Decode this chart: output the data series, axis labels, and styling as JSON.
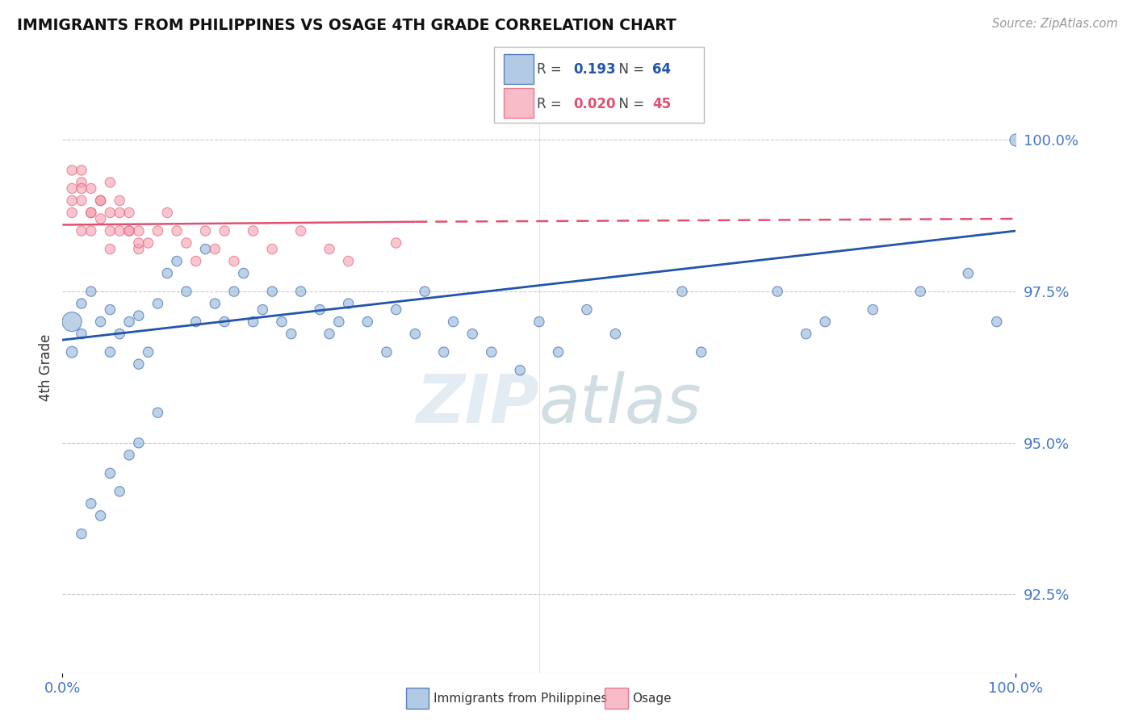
{
  "title": "IMMIGRANTS FROM PHILIPPINES VS OSAGE 4TH GRADE CORRELATION CHART",
  "source": "Source: ZipAtlas.com",
  "ylabel": "4th Grade",
  "xlim": [
    0,
    100
  ],
  "ylim": [
    91.2,
    101.3
  ],
  "yticks": [
    92.5,
    95.0,
    97.5,
    100.0
  ],
  "ytick_labels": [
    "92.5%",
    "95.0%",
    "97.5%",
    "100.0%"
  ],
  "blue_R": "0.193",
  "blue_N": "64",
  "pink_R": "0.020",
  "pink_N": "45",
  "legend_label_blue": "Immigrants from Philippines",
  "legend_label_pink": "Osage",
  "blue_color": "#92B4D8",
  "pink_color": "#F5A0B0",
  "blue_line_color": "#2255AA",
  "pink_line_color": "#E05070",
  "blue_scatter_x": [
    1,
    1,
    2,
    2,
    3,
    4,
    5,
    5,
    6,
    7,
    8,
    8,
    9,
    10,
    11,
    12,
    13,
    14,
    15,
    16,
    17,
    18,
    19,
    20,
    21,
    22,
    23,
    24,
    25,
    27,
    28,
    29,
    30,
    32,
    34,
    35,
    37,
    38,
    40,
    41,
    43,
    45,
    48,
    50,
    52,
    55,
    58,
    65,
    67,
    75,
    78,
    80,
    85,
    90,
    95,
    98,
    2,
    3,
    4,
    5,
    6,
    7,
    8,
    10
  ],
  "blue_scatter_y": [
    97.0,
    96.5,
    97.3,
    96.8,
    97.5,
    97.0,
    96.5,
    97.2,
    96.8,
    97.0,
    96.3,
    97.1,
    96.5,
    97.3,
    97.8,
    98.0,
    97.5,
    97.0,
    98.2,
    97.3,
    97.0,
    97.5,
    97.8,
    97.0,
    97.2,
    97.5,
    97.0,
    96.8,
    97.5,
    97.2,
    96.8,
    97.0,
    97.3,
    97.0,
    96.5,
    97.2,
    96.8,
    97.5,
    96.5,
    97.0,
    96.8,
    96.5,
    96.2,
    97.0,
    96.5,
    97.2,
    96.8,
    97.5,
    96.5,
    97.5,
    96.8,
    97.0,
    97.2,
    97.5,
    97.8,
    97.0,
    93.5,
    94.0,
    93.8,
    94.5,
    94.2,
    94.8,
    95.0,
    95.5
  ],
  "pink_scatter_x": [
    1,
    1,
    1,
    2,
    2,
    2,
    3,
    3,
    3,
    4,
    4,
    5,
    5,
    5,
    6,
    6,
    7,
    7,
    8,
    8,
    9,
    10,
    11,
    12,
    13,
    14,
    15,
    16,
    17,
    18,
    20,
    22,
    25,
    28,
    30,
    35,
    1,
    2,
    2,
    3,
    4,
    5,
    6,
    7,
    8
  ],
  "pink_scatter_y": [
    99.5,
    99.2,
    98.8,
    99.3,
    99.0,
    98.5,
    99.2,
    98.8,
    98.5,
    99.0,
    98.7,
    98.5,
    98.2,
    98.8,
    99.0,
    98.5,
    98.8,
    98.5,
    98.2,
    98.5,
    98.3,
    98.5,
    98.8,
    98.5,
    98.3,
    98.0,
    98.5,
    98.2,
    98.5,
    98.0,
    98.5,
    98.2,
    98.5,
    98.2,
    98.0,
    98.3,
    99.0,
    99.5,
    99.2,
    98.8,
    99.0,
    99.3,
    98.8,
    98.5,
    98.3
  ],
  "blue_scatter_sizes": [
    300,
    100,
    80,
    80,
    80,
    80,
    80,
    80,
    80,
    80,
    80,
    80,
    80,
    80,
    80,
    80,
    80,
    80,
    80,
    80,
    80,
    80,
    80,
    80,
    80,
    80,
    80,
    80,
    80,
    80,
    80,
    80,
    80,
    80,
    80,
    80,
    80,
    80,
    80,
    80,
    80,
    80,
    80,
    80,
    80,
    80,
    80,
    80,
    80,
    80,
    80,
    80,
    80,
    80,
    80,
    80,
    80,
    80,
    80,
    80,
    80,
    80,
    80,
    80
  ],
  "pink_scatter_sizes": [
    80,
    80,
    80,
    80,
    80,
    80,
    80,
    80,
    80,
    80,
    80,
    80,
    80,
    80,
    80,
    80,
    80,
    80,
    80,
    80,
    80,
    80,
    80,
    80,
    80,
    80,
    80,
    80,
    80,
    80,
    80,
    80,
    80,
    80,
    80,
    80,
    80,
    80,
    80,
    80,
    80,
    80,
    80,
    80,
    80
  ],
  "blue_line_x0": 0,
  "blue_line_x1": 100,
  "blue_line_y0": 96.7,
  "blue_line_y1": 98.5,
  "pink_line_x0": 0,
  "pink_line_x1": 37,
  "pink_line_solid_y0": 98.6,
  "pink_line_solid_y1": 98.65,
  "pink_line_dash_x0": 37,
  "pink_line_dash_x1": 100,
  "pink_line_dash_y0": 98.65,
  "pink_line_dash_y1": 98.7,
  "watermark_zip": "ZIP",
  "watermark_atlas": "atlas",
  "background_color": "#ffffff",
  "grid_color": "#cccccc",
  "dot_top_x": 100,
  "dot_top_y": 100.0
}
